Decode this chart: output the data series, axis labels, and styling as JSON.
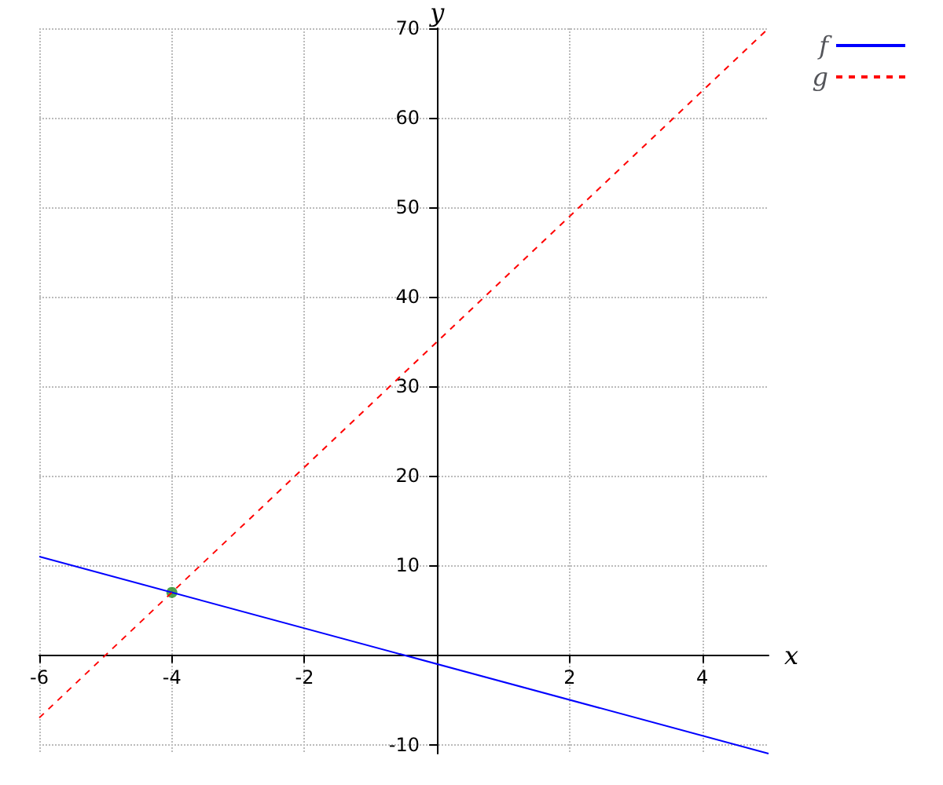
{
  "chart_data": {
    "type": "line",
    "xlabel": "x",
    "ylabel": "y",
    "xlim": [
      -6,
      5
    ],
    "ylim": [
      -11,
      70
    ],
    "xticks": [
      -6,
      -4,
      -2,
      2,
      4
    ],
    "yticks": [
      -10,
      10,
      20,
      30,
      40,
      50,
      60,
      70
    ],
    "grid": true,
    "legend": "top right",
    "series": [
      {
        "name": "f",
        "color": "#0000ff",
        "x": [
          -6,
          5
        ],
        "values": [
          11,
          -11
        ],
        "line_style": "solid",
        "marker": "none"
      },
      {
        "name": "g",
        "color": "#ff0000",
        "x": [
          -6,
          5
        ],
        "values": [
          -7,
          70
        ],
        "line_style": "dashed",
        "marker": "none"
      },
      {
        "type": "scatter",
        "color": "#228b22",
        "x": [
          -4
        ],
        "values": [
          7
        ],
        "marker": "circle"
      }
    ]
  }
}
